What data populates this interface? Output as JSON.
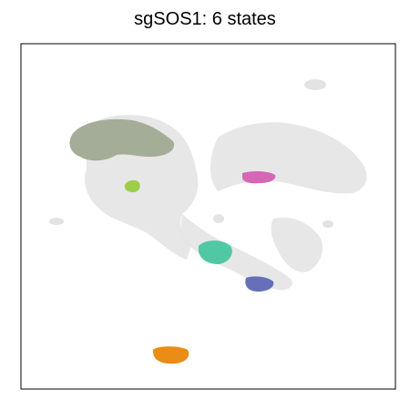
{
  "chart_data": {
    "type": "scatter",
    "title": "sgSOS1: 6 states",
    "xlabel": "",
    "ylabel": "",
    "axes_ticks": false,
    "grid": false,
    "legend": "none",
    "background_cells_color": "#e3e3e3",
    "series": [
      {
        "color": "#a3ad98",
        "region": "upper-left"
      },
      {
        "color": "#9dcd4a",
        "region": "left-center"
      },
      {
        "color": "#d567b7",
        "region": "center-right"
      },
      {
        "color": "#4fc8a3",
        "region": "center"
      },
      {
        "color": "#6670b8",
        "region": "lower-center-right"
      },
      {
        "color": "#ea8c16",
        "region": "bottom-center"
      }
    ]
  }
}
